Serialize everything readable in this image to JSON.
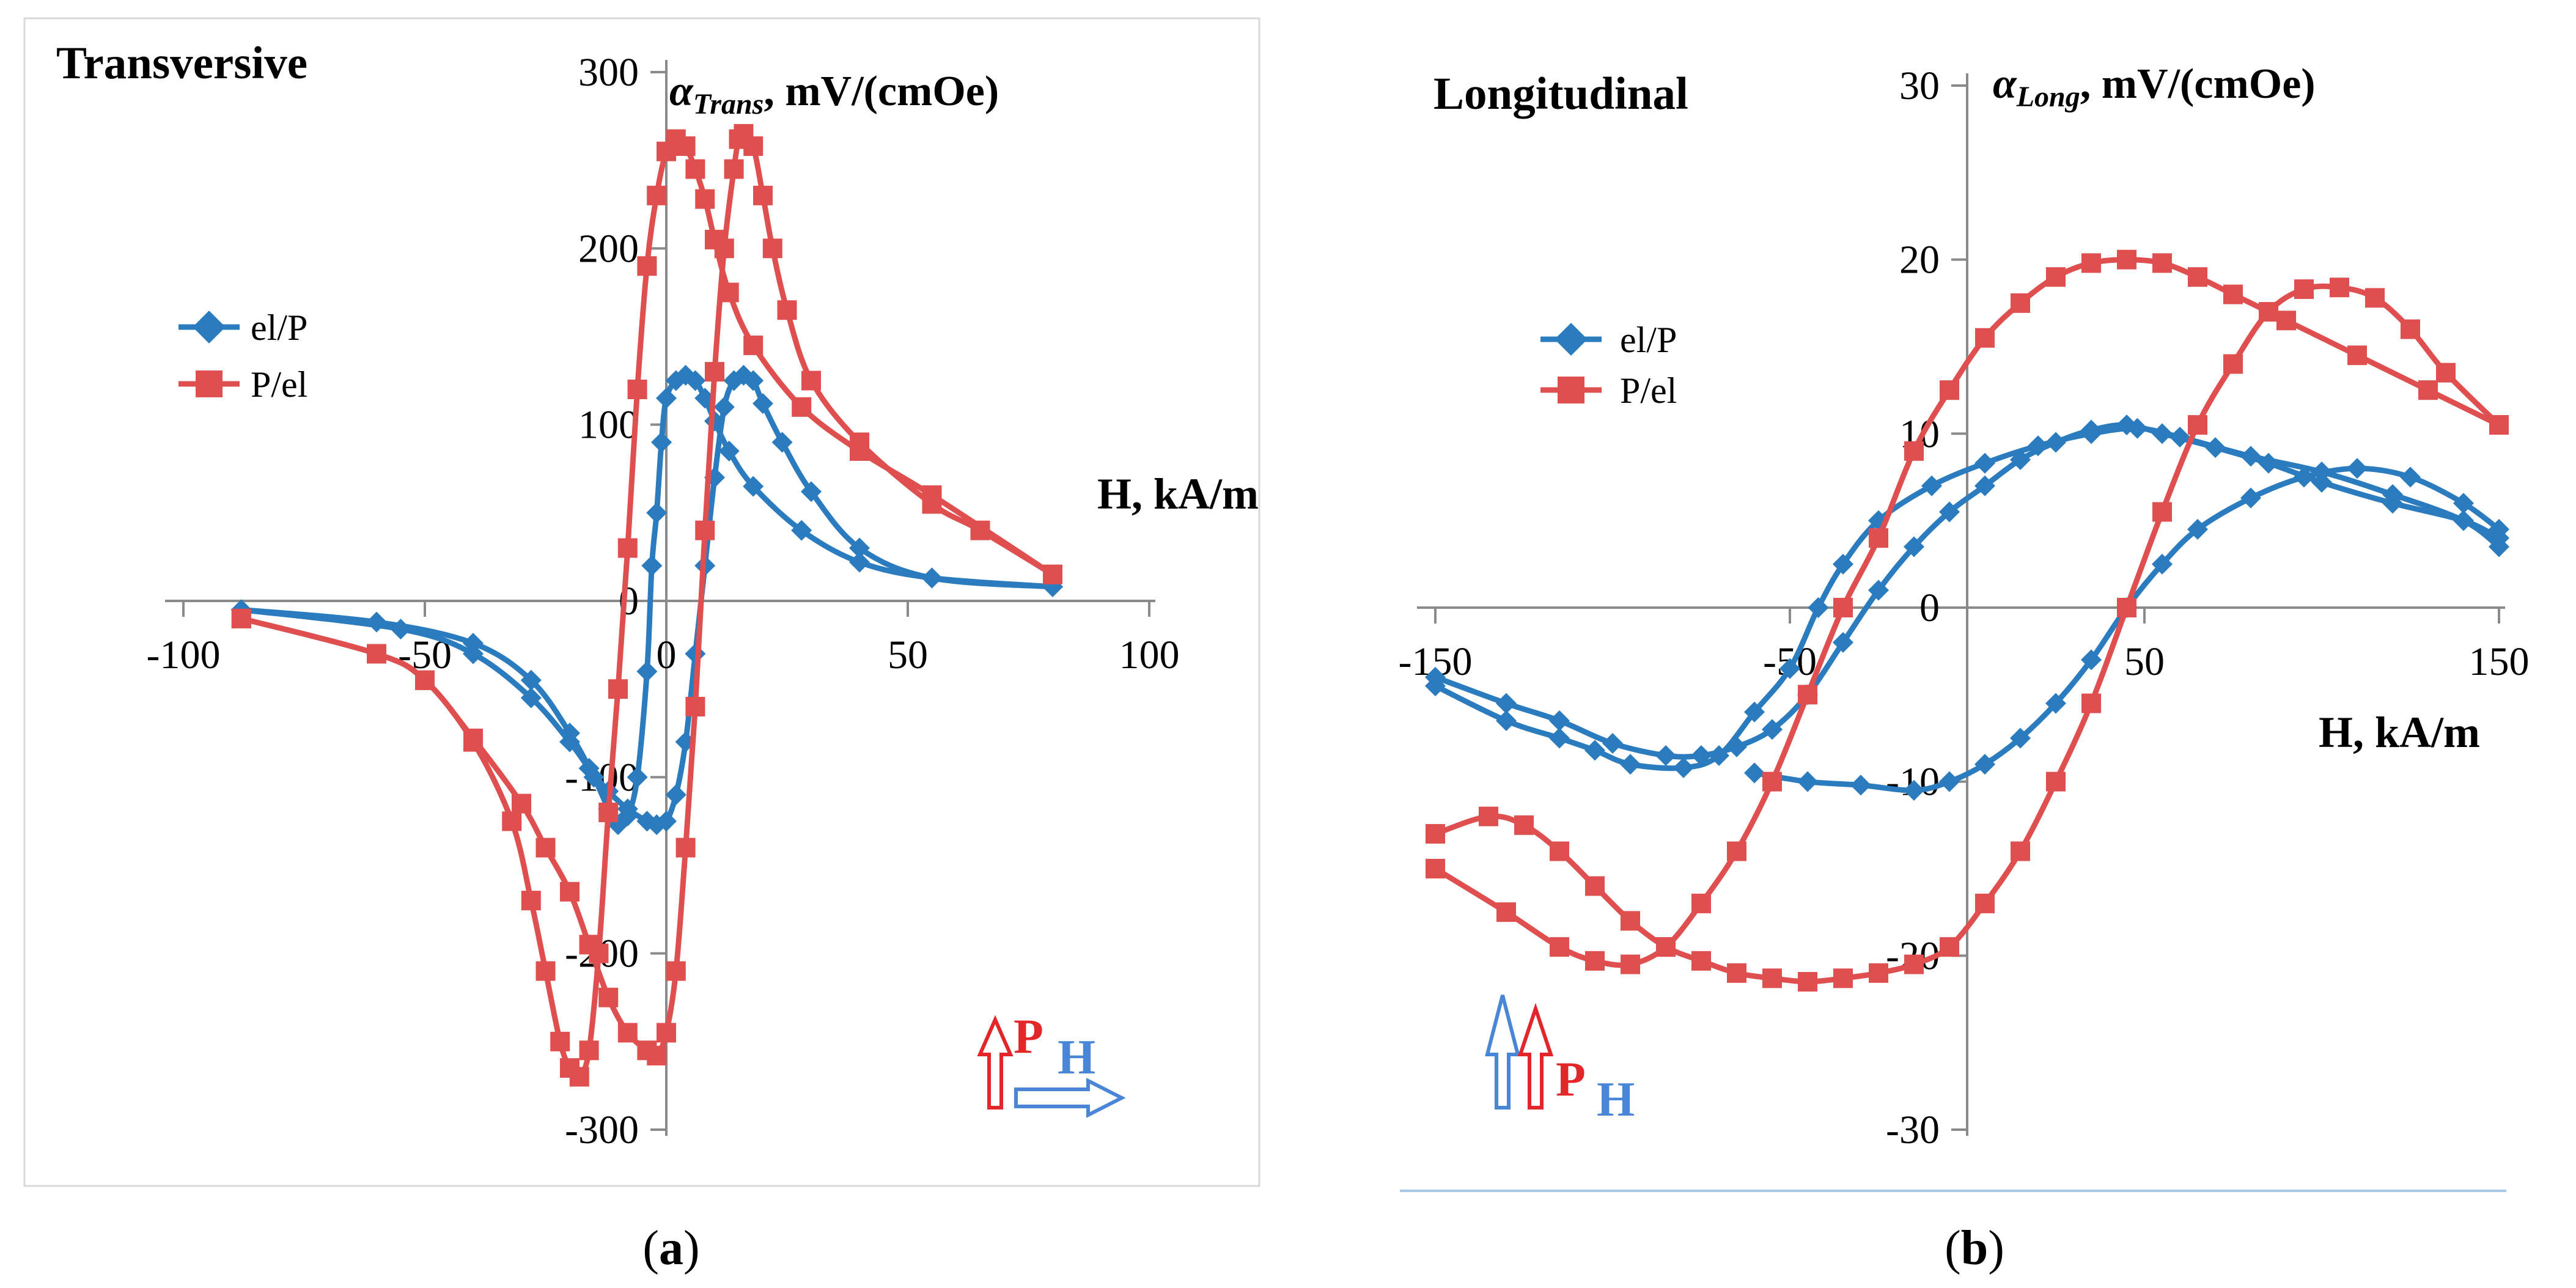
{
  "chart_data": [
    {
      "id": "a",
      "type": "line",
      "title": "Transversive",
      "ylabel_prefix": "α",
      "ylabel_sub": "Trans",
      "ylabel_suffix": ", mV/(cmOe)",
      "xlabel": "H, kA/m",
      "caption": "(a)",
      "caption_letter": "a",
      "xlim": [
        -100,
        100
      ],
      "ylim": [
        -300,
        300
      ],
      "xticks": [
        "-100",
        "-50",
        "0",
        "50",
        "100"
      ],
      "xtick_values": [
        -100,
        -50,
        0,
        50,
        100
      ],
      "yticks": [
        "-300",
        "-200",
        "-100",
        "0",
        "100",
        "200",
        "300"
      ],
      "ytick_values": [
        -300,
        -200,
        -100,
        0,
        100,
        200,
        300
      ],
      "legend": [
        "el/P",
        "P/el"
      ],
      "indicator": {
        "P": "P",
        "H": "H"
      },
      "series": [
        {
          "name": "el/P",
          "color": "#2b7bbf",
          "marker": "diamond",
          "branches": [
            [
              [
                -88,
                -5
              ],
              [
                -60,
                -12
              ],
              [
                -40,
                -24
              ],
              [
                -28,
                -45
              ],
              [
                -20,
                -75
              ],
              [
                -15,
                -100
              ],
              [
                -12,
                -118
              ],
              [
                -10,
                -127
              ],
              [
                -8,
                -122
              ],
              [
                -6,
                -100
              ],
              [
                -4,
                -40
              ],
              [
                -3,
                20
              ],
              [
                -2,
                50
              ],
              [
                -1,
                90
              ],
              [
                0,
                115
              ],
              [
                2,
                125
              ],
              [
                4,
                128
              ],
              [
                6,
                125
              ],
              [
                8,
                115
              ],
              [
                10,
                102
              ],
              [
                13,
                85
              ],
              [
                18,
                65
              ],
              [
                28,
                40
              ],
              [
                40,
                22
              ],
              [
                55,
                13
              ],
              [
                80,
                8
              ]
            ],
            [
              [
                -88,
                -5
              ],
              [
                -55,
                -16
              ],
              [
                -40,
                -30
              ],
              [
                -28,
                -55
              ],
              [
                -20,
                -80
              ],
              [
                -16,
                -95
              ],
              [
                -12,
                -108
              ],
              [
                -8,
                -118
              ],
              [
                -4,
                -125
              ],
              [
                -2,
                -127
              ],
              [
                0,
                -125
              ],
              [
                2,
                -110
              ],
              [
                4,
                -80
              ],
              [
                6,
                -30
              ],
              [
                8,
                20
              ],
              [
                10,
                70
              ],
              [
                12,
                110
              ],
              [
                14,
                125
              ],
              [
                16,
                128
              ],
              [
                18,
                125
              ],
              [
                20,
                112
              ],
              [
                24,
                90
              ],
              [
                30,
                62
              ],
              [
                40,
                30
              ],
              [
                55,
                13
              ],
              [
                80,
                8
              ]
            ]
          ]
        },
        {
          "name": "P/el",
          "color": "#e04f4f",
          "marker": "square",
          "branches": [
            [
              [
                -88,
                -10
              ],
              [
                -60,
                -30
              ],
              [
                -50,
                -45
              ],
              [
                -40,
                -80
              ],
              [
                -32,
                -125
              ],
              [
                -28,
                -170
              ],
              [
                -25,
                -210
              ],
              [
                -22,
                -250
              ],
              [
                -20,
                -265
              ],
              [
                -18,
                -270
              ],
              [
                -16,
                -255
              ],
              [
                -14,
                -200
              ],
              [
                -12,
                -120
              ],
              [
                -10,
                -50
              ],
              [
                -8,
                30
              ],
              [
                -6,
                120
              ],
              [
                -4,
                190
              ],
              [
                -2,
                230
              ],
              [
                0,
                255
              ],
              [
                2,
                262
              ],
              [
                4,
                258
              ],
              [
                6,
                245
              ],
              [
                8,
                228
              ],
              [
                10,
                205
              ],
              [
                13,
                175
              ],
              [
                18,
                145
              ],
              [
                28,
                110
              ],
              [
                40,
                85
              ],
              [
                55,
                60
              ],
              [
                80,
                15
              ]
            ],
            [
              [
                -88,
                -10
              ],
              [
                -60,
                -30
              ],
              [
                -50,
                -45
              ],
              [
                -40,
                -78
              ],
              [
                -30,
                -115
              ],
              [
                -25,
                -140
              ],
              [
                -20,
                -165
              ],
              [
                -16,
                -195
              ],
              [
                -12,
                -225
              ],
              [
                -8,
                -245
              ],
              [
                -4,
                -255
              ],
              [
                -2,
                -258
              ],
              [
                0,
                -245
              ],
              [
                2,
                -210
              ],
              [
                4,
                -140
              ],
              [
                6,
                -60
              ],
              [
                8,
                40
              ],
              [
                10,
                130
              ],
              [
                12,
                200
              ],
              [
                14,
                245
              ],
              [
                15,
                262
              ],
              [
                16,
                265
              ],
              [
                18,
                258
              ],
              [
                20,
                230
              ],
              [
                22,
                200
              ],
              [
                25,
                165
              ],
              [
                30,
                125
              ],
              [
                40,
                90
              ],
              [
                55,
                55
              ],
              [
                65,
                40
              ],
              [
                80,
                15
              ]
            ]
          ]
        }
      ]
    },
    {
      "id": "b",
      "type": "line",
      "title": "Longitudinal",
      "ylabel_prefix": "α",
      "ylabel_sub": "Long",
      "ylabel_suffix": ", mV/(cmOe)",
      "xlabel": "H, kA/m",
      "caption": "(b)",
      "caption_letter": "b",
      "xlim": [
        -150,
        150
      ],
      "ylim": [
        -30,
        30
      ],
      "xticks": [
        "-150",
        "-50",
        "50",
        "150"
      ],
      "xtick_values": [
        -150,
        -50,
        50,
        150
      ],
      "yticks": [
        "-30",
        "-20",
        "-10",
        "0",
        "10",
        "20",
        "30"
      ],
      "ytick_values": [
        -30,
        -20,
        -10,
        0,
        10,
        20,
        30
      ],
      "legend": [
        "el/P",
        "P/el"
      ],
      "indicator": {
        "P": "P",
        "H": "H"
      },
      "series": [
        {
          "name": "el/P",
          "color": "#2b7bbf",
          "marker": "diamond",
          "branches": [
            [
              [
                -150,
                -4
              ],
              [
                -130,
                -5.5
              ],
              [
                -115,
                -6.5
              ],
              [
                -100,
                -7.8
              ],
              [
                -85,
                -8.5
              ],
              [
                -75,
                -8.5
              ],
              [
                -65,
                -8
              ],
              [
                -55,
                -7
              ],
              [
                -45,
                -5
              ],
              [
                -35,
                -2
              ],
              [
                -25,
                1
              ],
              [
                -15,
                3.5
              ],
              [
                -5,
                5.5
              ],
              [
                5,
                7
              ],
              [
                15,
                8.5
              ],
              [
                25,
                9.5
              ],
              [
                35,
                10.2
              ],
              [
                45,
                10.5
              ],
              [
                55,
                10
              ],
              [
                70,
                9.2
              ],
              [
                85,
                8.3
              ],
              [
                100,
                7.2
              ],
              [
                120,
                6
              ],
              [
                140,
                5
              ],
              [
                150,
                4
              ]
            ],
            [
              [
                -150,
                -4.5
              ],
              [
                -130,
                -6.5
              ],
              [
                -115,
                -7.5
              ],
              [
                -105,
                -8.2
              ],
              [
                -95,
                -9
              ],
              [
                -80,
                -9.2
              ],
              [
                -70,
                -8.5
              ],
              [
                -60,
                -6
              ],
              [
                -50,
                -3.5
              ],
              [
                -42,
                0
              ],
              [
                -35,
                2.5
              ],
              [
                -25,
                5
              ],
              [
                -10,
                7
              ],
              [
                5,
                8.3
              ],
              [
                20,
                9.3
              ],
              [
                35,
                10
              ],
              [
                48,
                10.3
              ],
              [
                60,
                9.8
              ],
              [
                80,
                8.7
              ],
              [
                100,
                7.8
              ],
              [
                120,
                6.5
              ],
              [
                140,
                5
              ],
              [
                150,
                3.5
              ]
            ],
            [
              [
                -60,
                -9.5
              ],
              [
                -45,
                -10
              ],
              [
                -30,
                -10.2
              ],
              [
                -15,
                -10.5
              ],
              [
                -5,
                -10
              ],
              [
                5,
                -9
              ],
              [
                15,
                -7.5
              ],
              [
                25,
                -5.5
              ],
              [
                35,
                -3
              ],
              [
                45,
                0
              ],
              [
                55,
                2.5
              ],
              [
                65,
                4.5
              ],
              [
                80,
                6.3
              ],
              [
                95,
                7.5
              ],
              [
                110,
                8
              ],
              [
                125,
                7.5
              ],
              [
                140,
                6
              ],
              [
                150,
                4.5
              ]
            ]
          ]
        },
        {
          "name": "P/el",
          "color": "#e04f4f",
          "marker": "square",
          "branches": [
            [
              [
                -150,
                -13
              ],
              [
                -135,
                -12
              ],
              [
                -125,
                -12.5
              ],
              [
                -115,
                -14
              ],
              [
                -105,
                -16
              ],
              [
                -95,
                -18
              ],
              [
                -85,
                -19.5
              ],
              [
                -75,
                -20.3
              ],
              [
                -65,
                -21
              ],
              [
                -55,
                -21.3
              ],
              [
                -45,
                -21.5
              ],
              [
                -35,
                -21.3
              ],
              [
                -25,
                -21
              ],
              [
                -15,
                -20.5
              ],
              [
                -5,
                -19.5
              ],
              [
                5,
                -17
              ],
              [
                15,
                -14
              ],
              [
                25,
                -10
              ],
              [
                35,
                -5.5
              ],
              [
                45,
                0
              ],
              [
                55,
                5.5
              ],
              [
                65,
                10.5
              ],
              [
                75,
                14
              ],
              [
                85,
                17
              ],
              [
                95,
                18.3
              ],
              [
                105,
                18.4
              ],
              [
                115,
                17.8
              ],
              [
                125,
                16
              ],
              [
                135,
                13.5
              ],
              [
                150,
                10.5
              ]
            ],
            [
              [
                -150,
                -15
              ],
              [
                -130,
                -17.5
              ],
              [
                -115,
                -19.5
              ],
              [
                -105,
                -20.3
              ],
              [
                -95,
                -20.5
              ],
              [
                -85,
                -19.5
              ],
              [
                -75,
                -17
              ],
              [
                -65,
                -14
              ],
              [
                -55,
                -10
              ],
              [
                -45,
                -5
              ],
              [
                -35,
                0
              ],
              [
                -25,
                4
              ],
              [
                -15,
                9
              ],
              [
                -5,
                12.5
              ],
              [
                5,
                15.5
              ],
              [
                15,
                17.5
              ],
              [
                25,
                19
              ],
              [
                35,
                19.8
              ],
              [
                45,
                20
              ],
              [
                55,
                19.8
              ],
              [
                65,
                19
              ],
              [
                75,
                18
              ],
              [
                90,
                16.5
              ],
              [
                110,
                14.5
              ],
              [
                130,
                12.5
              ],
              [
                150,
                10.5
              ]
            ]
          ]
        }
      ]
    }
  ]
}
